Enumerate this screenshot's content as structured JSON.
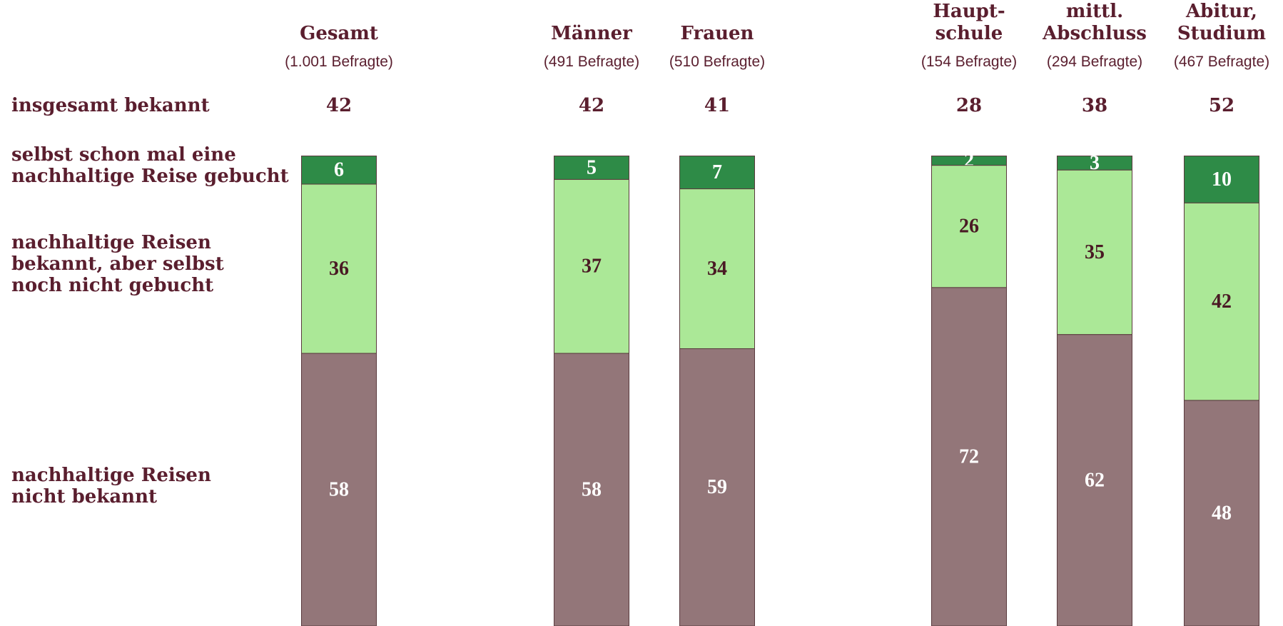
{
  "chart_data": {
    "type": "stacked_bar",
    "categories": [
      "Gesamt",
      "Männer",
      "Frauen",
      "Haupt-\nschule",
      "mittl.\nAbschluss",
      "Abitur,\nStudium"
    ],
    "subtitles": [
      "(1.001 Befragte)",
      "(491 Befragte)",
      "(510 Befragte)",
      "(154 Befragte)",
      "(294 Befragte)",
      "(467 Befragte)"
    ],
    "totals": {
      "name": "insgesamt bekannt",
      "values": [
        42,
        42,
        41,
        28,
        38,
        52
      ]
    },
    "series": [
      {
        "name": "selbst schon mal eine\nnachhaltige Reise gebucht",
        "color": "#2e8b47",
        "values": [
          6,
          5,
          7,
          2,
          3,
          10
        ]
      },
      {
        "name": "nachhaltige Reisen\nbekannt, aber selbst\nnoch nicht gebucht",
        "color": "#abe897",
        "values": [
          36,
          37,
          34,
          26,
          35,
          42
        ]
      },
      {
        "name": "nachhaltige Reisen\nnicht bekannt",
        "color": "#937679",
        "values": [
          58,
          58,
          59,
          72,
          62,
          48
        ]
      }
    ],
    "ylim": [
      0,
      100
    ]
  }
}
